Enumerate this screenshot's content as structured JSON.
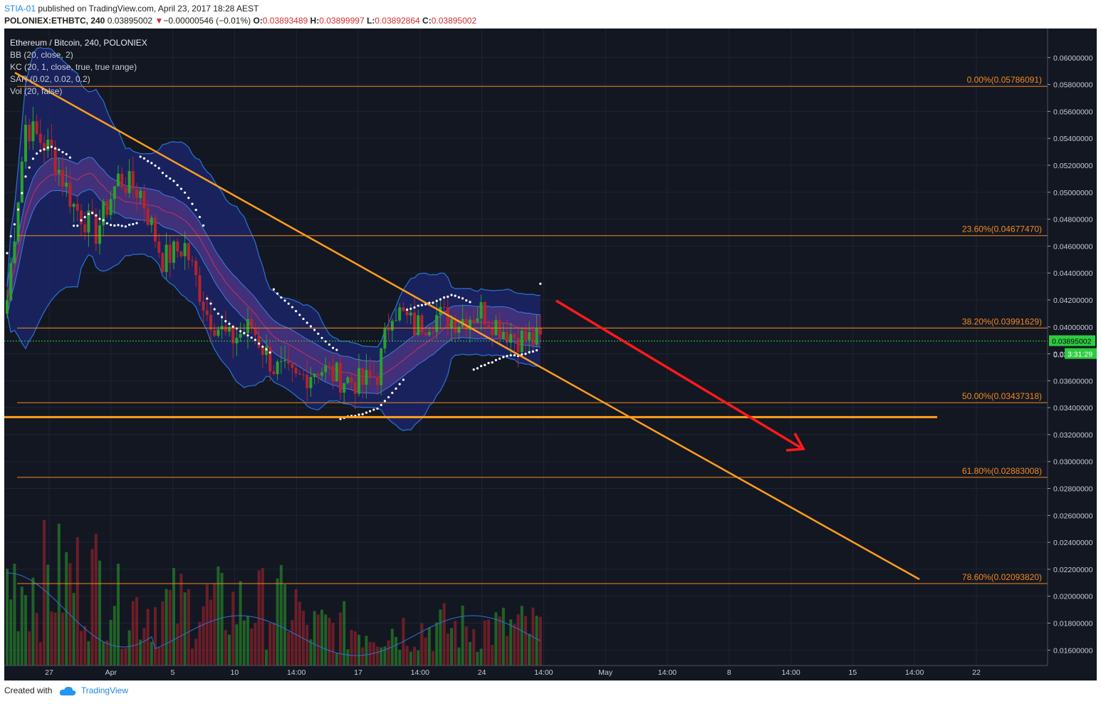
{
  "header": {
    "author": "STIA-01",
    "published": "published on TradingView.com, April 23, 2017 18:28 AEST",
    "symbol": "POLONIEX:ETHBTC, 240",
    "price": "0.03895002",
    "change_arrow": "▼",
    "change": "−0.00000546 (−0.01%)",
    "o_label": "O:",
    "o": "0.03893489",
    "h_label": "H:",
    "h": "0.03899997",
    "l_label": "L:",
    "l": "0.03892864",
    "c_label": "C:",
    "c": "0.03895002"
  },
  "legend": [
    "Ethereum / Bitcoin, 240, POLONIEX",
    "BB (20, close, 2)",
    "KC (20, 1, close, true, true range)",
    "SAR (0.02, 0.02, 0.2)",
    "Vol (20, false)"
  ],
  "footer": {
    "created_with": "Created with",
    "brand": "TradingView"
  },
  "colors": {
    "background": "#131722",
    "fib": "#f28a1e",
    "trend": "#ff9f1c",
    "forecast_arrow": "#ff1a1a",
    "up": "#2ca02c",
    "down": "#b5242c",
    "bb": "#2c73d6",
    "kc_fill": "#5b3a8e",
    "current_price": "#2ecc40"
  },
  "price_label": {
    "value": "0.03895002",
    "countdown": "3:31:29",
    "partial": "0.03"
  },
  "chart_data": {
    "type": "candlestick",
    "title": "Ethereum / Bitcoin, 240, POLONIEX",
    "x_ticks": [
      "27",
      "Apr",
      "5",
      "10",
      "14:00",
      "17",
      "14:00",
      "24",
      "14:00",
      "May",
      "14:00",
      "8",
      "14:00",
      "15",
      "14:00",
      "22"
    ],
    "y_ticks": [
      "0.06000000",
      "0.05800000",
      "0.05600000",
      "0.05400000",
      "0.05200000",
      "0.05000000",
      "0.04800000",
      "0.04600000",
      "0.04400000",
      "0.04200000",
      "0.04000000",
      "0.03800000",
      "0.03600000",
      "0.03400000",
      "0.03200000",
      "0.03000000",
      "0.02800000",
      "0.02600000",
      "0.02400000",
      "0.02200000",
      "0.02000000",
      "0.01800000",
      "0.01600000"
    ],
    "ylim": [
      0.0148,
      0.062
    ],
    "fib_levels": [
      {
        "label": "0.00%(0.05786091)",
        "value": 0.05786091
      },
      {
        "label": "23.60%(0.04677470)",
        "value": 0.0467747
      },
      {
        "label": "38.20%(0.03991629)",
        "value": 0.03991629
      },
      {
        "label": "50.00%(0.03437318)",
        "value": 0.03437318
      },
      {
        "label": "61.80%(0.02883008)",
        "value": 0.02883008
      },
      {
        "label": "78.60%(0.02093820)",
        "value": 0.0209382
      }
    ],
    "current_price": 0.03895002,
    "support_line": 0.0333,
    "close_path": [
      {
        "t": 0,
        "p": 0.042
      },
      {
        "t": 5,
        "p": 0.055
      },
      {
        "t": 12,
        "p": 0.053
      },
      {
        "t": 18,
        "p": 0.049
      },
      {
        "t": 24,
        "p": 0.047
      },
      {
        "t": 30,
        "p": 0.051
      },
      {
        "t": 36,
        "p": 0.05
      },
      {
        "t": 42,
        "p": 0.045
      },
      {
        "t": 48,
        "p": 0.046
      },
      {
        "t": 54,
        "p": 0.041
      },
      {
        "t": 60,
        "p": 0.039
      },
      {
        "t": 66,
        "p": 0.04
      },
      {
        "t": 72,
        "p": 0.037
      },
      {
        "t": 78,
        "p": 0.036
      },
      {
        "t": 84,
        "p": 0.037
      },
      {
        "t": 90,
        "p": 0.0362
      },
      {
        "t": 96,
        "p": 0.0358
      },
      {
        "t": 100,
        "p": 0.0365
      },
      {
        "t": 104,
        "p": 0.0415
      },
      {
        "t": 110,
        "p": 0.04
      },
      {
        "t": 116,
        "p": 0.0408
      },
      {
        "t": 122,
        "p": 0.0405
      },
      {
        "t": 128,
        "p": 0.0412
      },
      {
        "t": 133,
        "p": 0.04
      },
      {
        "t": 138,
        "p": 0.0392
      },
      {
        "t": 144,
        "p": 0.03895
      }
    ]
  }
}
